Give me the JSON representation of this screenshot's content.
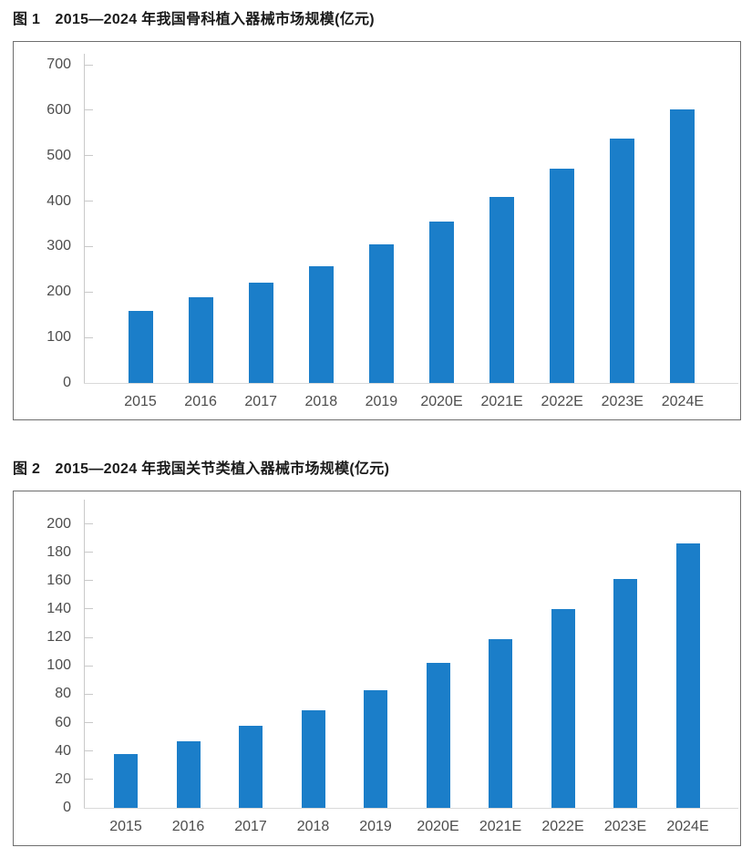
{
  "page": {
    "background": "#ffffff"
  },
  "colors": {
    "bar": "#1b7ec9",
    "axis": "#c9c9c9",
    "baseline": "#d9d9d9",
    "box_border": "#6e6e6e",
    "label_text": "#4d4d4d",
    "title_text": "#1a1a1a"
  },
  "chart_data": [
    {
      "type": "bar",
      "title": "图 1　2015—2024 年我国骨科植入器械市场规模(亿元)",
      "unit": "亿元",
      "categories": [
        "2015",
        "2016",
        "2017",
        "2018",
        "2019",
        "2020E",
        "2021E",
        "2022E",
        "2023E",
        "2024E"
      ],
      "values": [
        158,
        188,
        221,
        257,
        304,
        356,
        410,
        471,
        538,
        601
      ],
      "ylim": [
        0,
        700
      ],
      "ytick_step": 100,
      "grid": false,
      "legend": false,
      "bar_color": "#1b7ec9"
    },
    {
      "type": "bar",
      "title": "图 2　2015—2024 年我国关节类植入器械市场规模(亿元)",
      "unit": "亿元",
      "categories": [
        "2015",
        "2016",
        "2017",
        "2018",
        "2019",
        "2020E",
        "2021E",
        "2022E",
        "2023E",
        "2024E"
      ],
      "values": [
        38,
        47,
        58,
        69,
        83,
        102,
        119,
        140,
        161,
        186
      ],
      "ylim": [
        0,
        200
      ],
      "ytick_step": 20,
      "grid": false,
      "legend": false,
      "bar_color": "#1b7ec9"
    }
  ]
}
